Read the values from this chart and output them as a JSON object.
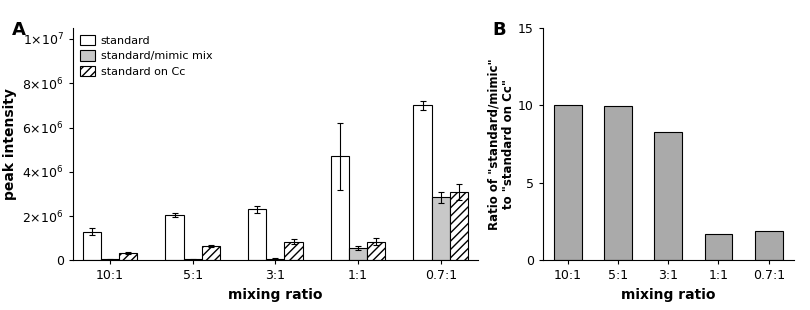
{
  "categories": [
    "10:1",
    "5:1",
    "3:1",
    "1:1",
    "0.7:1"
  ],
  "standard_values": [
    1300000.0,
    2050000.0,
    2300000.0,
    4700000.0,
    7000000.0
  ],
  "standard_err": [
    150000.0,
    100000.0,
    150000.0,
    1500000.0,
    200000.0
  ],
  "mimic_values": [
    50000.0,
    50000.0,
    80000.0,
    550000.0,
    2850000.0
  ],
  "mimic_err": [
    20000.0,
    20000.0,
    30000.0,
    100000.0,
    250000.0
  ],
  "oncc_values": [
    350000.0,
    650000.0,
    850000.0,
    850000.0,
    3100000.0
  ],
  "oncc_err": [
    50000.0,
    50000.0,
    100000.0,
    150000.0,
    350000.0
  ],
  "ratio_values": [
    10.05,
    9.95,
    8.3,
    1.7,
    1.9
  ],
  "ylabel_A": "peak intensity",
  "ylabel_B": "Ratio of \"standard/mimic\"\nto \"standard on Cc\"",
  "xlabel": "mixing ratio",
  "ylim_A": [
    0,
    10500000.0
  ],
  "ylim_B": [
    0,
    15
  ],
  "yticks_A": [
    0,
    2000000.0,
    4000000.0,
    6000000.0,
    8000000.0,
    10000000.0
  ],
  "yticks_B": [
    0,
    5,
    10,
    15
  ],
  "label_A": "A",
  "label_B": "B",
  "color_standard": "#ffffff",
  "color_mimic": "#c8c8c8",
  "color_ratio_bar": "#aaaaaa",
  "bar_edgecolor": "#000000",
  "legend_labels": [
    "standard",
    "standard/mimic mix",
    "standard on Cc"
  ]
}
